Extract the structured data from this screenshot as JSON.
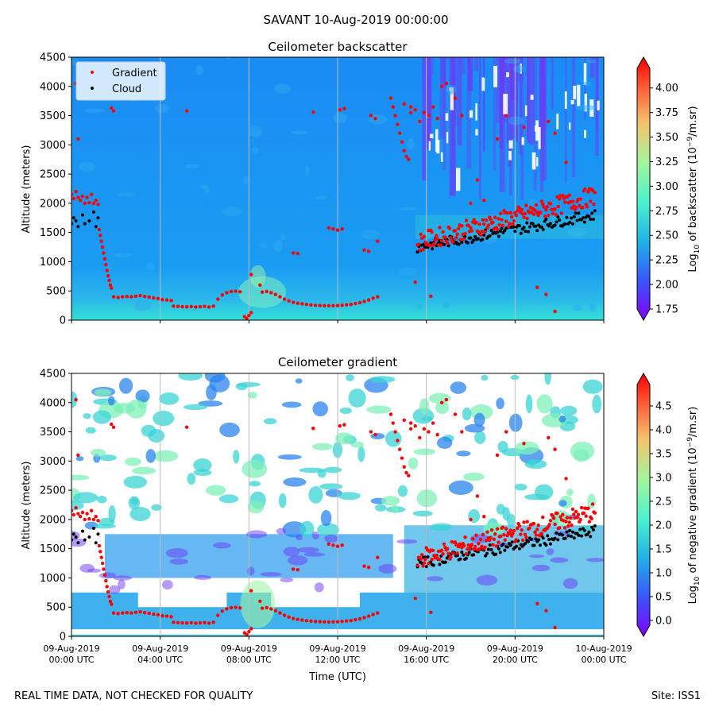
{
  "figure": {
    "suptitle": "SAVANT 10-Aug-2019 00:00:00",
    "footer_left": "REAL TIME DATA, NOT CHECKED FOR QUALITY",
    "footer_right": "Site: ISS1",
    "colors": {
      "gradient_marker": "#ff0000",
      "cloud_marker": "#000000",
      "gridline": "#bbbbbb",
      "mask": "#ffffff"
    }
  },
  "chart_data": [
    {
      "type": "heatmap",
      "title": "Ceilometer backscatter",
      "xlabel": "",
      "ylabel": "Altitude (meters)",
      "ylim": [
        0,
        4500
      ],
      "yticks": [
        0,
        500,
        1000,
        1500,
        2000,
        2500,
        3000,
        3500,
        4000,
        4500
      ],
      "xlim_hours": [
        0,
        24
      ],
      "xticks_hours": [
        0,
        4,
        8,
        12,
        16,
        20,
        24
      ],
      "colorbar": {
        "label_prefix": "Log",
        "label_sub": "10",
        "label_mid": " of backscatter (10",
        "label_sup": "−9",
        "label_suffix": "/m.sr)",
        "range": [
          1.75,
          4.2
        ],
        "ticks": [
          "1.75",
          "2.00",
          "2.25",
          "2.50",
          "2.75",
          "3.00",
          "3.25",
          "3.50",
          "3.75",
          "4.00"
        ]
      },
      "legend": {
        "position": "upper-left",
        "entries": [
          {
            "label": "Gradient",
            "color": "#ff0000"
          },
          {
            "label": "Cloud",
            "color": "#000000"
          }
        ]
      }
    },
    {
      "type": "heatmap",
      "title": "Ceilometer gradient",
      "xlabel": "Time (UTC)",
      "ylabel": "Altitude (meters)",
      "ylim": [
        0,
        4500
      ],
      "yticks": [
        0,
        500,
        1000,
        1500,
        2000,
        2500,
        3000,
        3500,
        4000,
        4500
      ],
      "xlim_hours": [
        0,
        24
      ],
      "xticks_hours": [
        0,
        4,
        8,
        12,
        16,
        20,
        24
      ],
      "xtick_labels": [
        [
          "09-Aug-2019",
          "00:00 UTC"
        ],
        [
          "09-Aug-2019",
          "04:00 UTC"
        ],
        [
          "09-Aug-2019",
          "08:00 UTC"
        ],
        [
          "09-Aug-2019",
          "12:00 UTC"
        ],
        [
          "09-Aug-2019",
          "16:00 UTC"
        ],
        [
          "09-Aug-2019",
          "20:00 UTC"
        ],
        [
          "10-Aug-2019",
          "00:00 UTC"
        ]
      ],
      "colorbar": {
        "label_prefix": "Log",
        "label_sub": "10",
        "label_mid": " of negative gradient (10",
        "label_sup": "−9",
        "label_suffix": "/m.sr)",
        "range": [
          -0.1,
          4.95
        ],
        "ticks": [
          "0.0",
          "0.5",
          "1.0",
          "1.5",
          "2.0",
          "2.5",
          "3.0",
          "3.5",
          "4.0",
          "4.5"
        ]
      }
    }
  ],
  "series": {
    "gradient_points": [
      [
        0.0,
        2150
      ],
      [
        0.1,
        2080
      ],
      [
        0.2,
        2200
      ],
      [
        0.3,
        2100
      ],
      [
        0.4,
        2050
      ],
      [
        0.5,
        2120
      ],
      [
        0.6,
        2000
      ],
      [
        0.7,
        2100
      ],
      [
        0.8,
        2010
      ],
      [
        0.9,
        2150
      ],
      [
        1.0,
        2000
      ],
      [
        1.1,
        2050
      ],
      [
        1.2,
        1980
      ],
      [
        1.25,
        1550
      ],
      [
        1.3,
        1450
      ],
      [
        1.35,
        1350
      ],
      [
        1.4,
        1250
      ],
      [
        1.45,
        1150
      ],
      [
        1.5,
        1050
      ],
      [
        1.55,
        950
      ],
      [
        1.6,
        850
      ],
      [
        1.65,
        760
      ],
      [
        1.7,
        680
      ],
      [
        1.75,
        600
      ],
      [
        1.8,
        550
      ],
      [
        1.9,
        400
      ],
      [
        2.1,
        390
      ],
      [
        2.3,
        400
      ],
      [
        2.5,
        405
      ],
      [
        2.7,
        400
      ],
      [
        2.9,
        410
      ],
      [
        3.1,
        420
      ],
      [
        3.3,
        405
      ],
      [
        3.5,
        395
      ],
      [
        3.7,
        380
      ],
      [
        3.9,
        370
      ],
      [
        4.1,
        350
      ],
      [
        4.3,
        345
      ],
      [
        4.5,
        335
      ],
      [
        4.6,
        240
      ],
      [
        4.8,
        235
      ],
      [
        5.0,
        230
      ],
      [
        5.2,
        228
      ],
      [
        5.4,
        232
      ],
      [
        5.6,
        225
      ],
      [
        5.8,
        230
      ],
      [
        6.0,
        235
      ],
      [
        6.2,
        225
      ],
      [
        6.4,
        240
      ],
      [
        6.6,
        360
      ],
      [
        6.8,
        430
      ],
      [
        7.0,
        470
      ],
      [
        7.2,
        490
      ],
      [
        7.4,
        495
      ],
      [
        7.6,
        485
      ],
      [
        7.8,
        60
      ],
      [
        7.9,
        30
      ],
      [
        8.0,
        80
      ],
      [
        8.1,
        130
      ],
      [
        8.6,
        480
      ],
      [
        8.8,
        490
      ],
      [
        9.0,
        470
      ],
      [
        9.2,
        440
      ],
      [
        9.4,
        400
      ],
      [
        9.6,
        360
      ],
      [
        9.8,
        330
      ],
      [
        10.0,
        305
      ],
      [
        10.2,
        290
      ],
      [
        10.4,
        280
      ],
      [
        10.6,
        270
      ],
      [
        10.8,
        260
      ],
      [
        11.0,
        255
      ],
      [
        11.2,
        250
      ],
      [
        11.4,
        248
      ],
      [
        11.6,
        245
      ],
      [
        11.8,
        248
      ],
      [
        12.0,
        250
      ],
      [
        12.2,
        255
      ],
      [
        12.4,
        262
      ],
      [
        12.6,
        270
      ],
      [
        12.8,
        285
      ],
      [
        13.0,
        300
      ],
      [
        13.2,
        320
      ],
      [
        13.4,
        345
      ],
      [
        13.6,
        375
      ],
      [
        13.8,
        400
      ],
      [
        11.6,
        1580
      ],
      [
        11.8,
        1560
      ],
      [
        12.0,
        1540
      ],
      [
        12.2,
        1560
      ],
      [
        10.0,
        1150
      ],
      [
        10.2,
        1140
      ],
      [
        13.2,
        1200
      ],
      [
        13.4,
        1180
      ],
      [
        13.8,
        1350
      ],
      [
        1.8,
        3630
      ],
      [
        1.9,
        3580
      ],
      [
        5.2,
        3580
      ],
      [
        10.9,
        3560
      ],
      [
        12.1,
        3600
      ],
      [
        12.3,
        3620
      ],
      [
        13.5,
        3500
      ],
      [
        13.7,
        3450
      ],
      [
        15.0,
        3700
      ],
      [
        15.3,
        3650
      ],
      [
        14.4,
        3800
      ],
      [
        14.5,
        3650
      ],
      [
        14.6,
        3500
      ],
      [
        14.7,
        3350
      ],
      [
        14.8,
        3200
      ],
      [
        14.9,
        3050
      ],
      [
        15.0,
        2900
      ],
      [
        15.1,
        2800
      ],
      [
        15.2,
        2750
      ],
      [
        15.3,
        3550
      ],
      [
        15.5,
        3600
      ],
      [
        15.7,
        3400
      ],
      [
        15.9,
        3550
      ],
      [
        16.1,
        3500
      ],
      [
        16.3,
        3650
      ],
      [
        16.5,
        3450
      ],
      [
        16.7,
        4000
      ],
      [
        16.9,
        4050
      ],
      [
        17.3,
        3800
      ],
      [
        17.6,
        3500
      ],
      [
        18.0,
        2000
      ],
      [
        18.3,
        2400
      ],
      [
        18.6,
        2050
      ],
      [
        19.2,
        3100
      ],
      [
        19.6,
        3500
      ],
      [
        20.4,
        3300
      ],
      [
        21.5,
        3400
      ],
      [
        21.8,
        3200
      ],
      [
        22.3,
        2700
      ],
      [
        0.3,
        3100
      ],
      [
        0.2,
        4050
      ],
      [
        8.1,
        780
      ],
      [
        8.5,
        600
      ],
      [
        15.5,
        650
      ],
      [
        16.2,
        410
      ],
      [
        21.0,
        560
      ],
      [
        21.4,
        440
      ],
      [
        21.8,
        150
      ]
    ],
    "cloud_band": {
      "start_hour": 15.6,
      "end_hour": 23.6,
      "start_alt": 1250,
      "end_alt": 1800
    },
    "cloud_early": [
      [
        0.0,
        1650
      ],
      [
        0.1,
        1750
      ],
      [
        0.2,
        1700
      ],
      [
        0.3,
        1600
      ],
      [
        0.5,
        1800
      ],
      [
        0.6,
        1650
      ],
      [
        0.8,
        1700
      ],
      [
        1.0,
        1850
      ],
      [
        1.1,
        1600
      ],
      [
        1.2,
        1750
      ]
    ]
  }
}
